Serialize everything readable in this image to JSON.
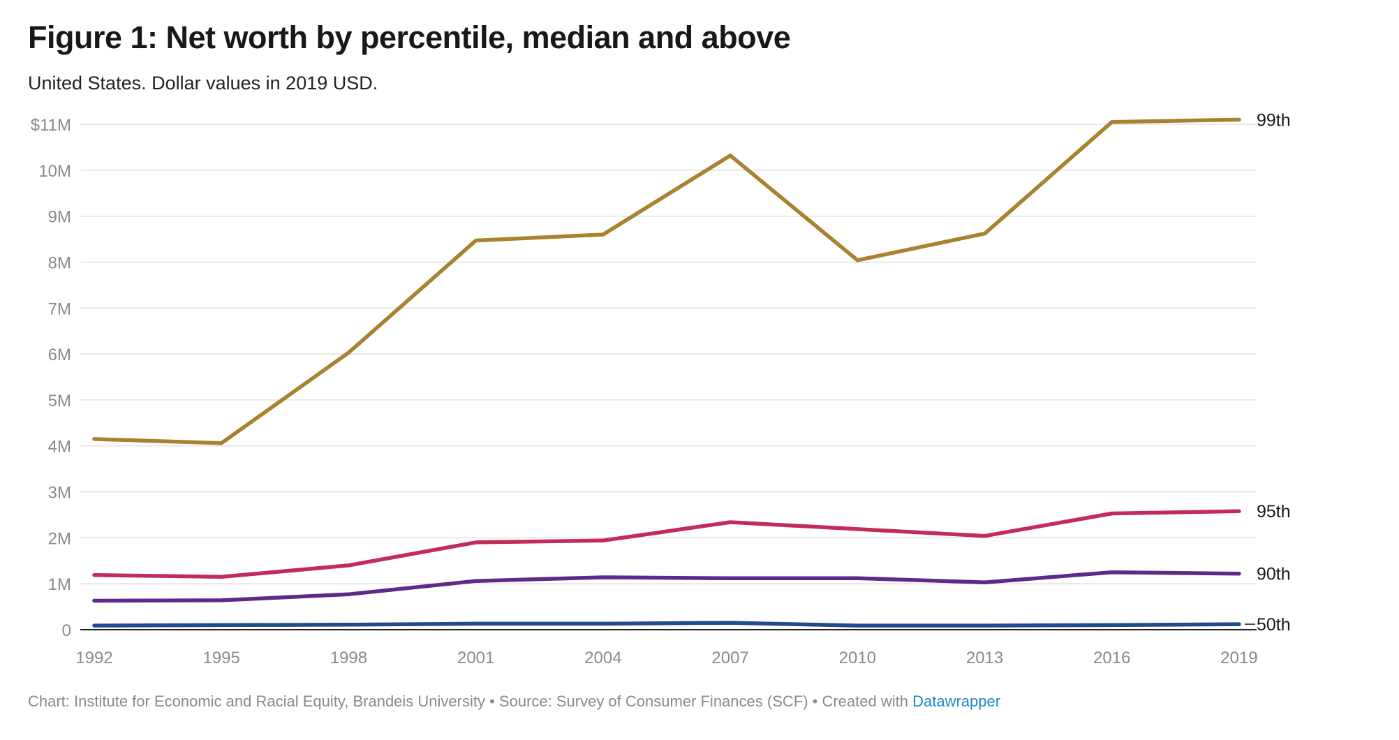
{
  "title": "Figure 1: Net worth by percentile, median and above",
  "subtitle": "United States. Dollar values in 2019 USD.",
  "footer": {
    "chart_credit": "Chart: Institute for Economic and Racial Equity, Brandeis University",
    "separator": " • ",
    "source": "Source: Survey of Consumer Finances (SCF)",
    "created_with": "Created with ",
    "tool": "Datawrapper"
  },
  "chart_data": {
    "type": "line",
    "title": "Figure 1: Net worth by percentile, median and above",
    "subtitle": "United States. Dollar values in 2019 USD.",
    "x": [
      1992,
      1995,
      1998,
      2001,
      2004,
      2007,
      2010,
      2013,
      2016,
      2019
    ],
    "ylim": [
      0,
      11000000
    ],
    "y_ticks": [
      {
        "value": 0,
        "label": "0"
      },
      {
        "value": 1000000,
        "label": "1M"
      },
      {
        "value": 2000000,
        "label": "2M"
      },
      {
        "value": 3000000,
        "label": "3M"
      },
      {
        "value": 4000000,
        "label": "4M"
      },
      {
        "value": 5000000,
        "label": "5M"
      },
      {
        "value": 6000000,
        "label": "6M"
      },
      {
        "value": 7000000,
        "label": "7M"
      },
      {
        "value": 8000000,
        "label": "8M"
      },
      {
        "value": 9000000,
        "label": "9M"
      },
      {
        "value": 10000000,
        "label": "10M"
      },
      {
        "value": 11000000,
        "label": "$11M"
      }
    ],
    "grid": "horizontal",
    "legend": "end-of-line labels",
    "series": [
      {
        "name": "99th",
        "color": "#a8822f",
        "values": [
          4150000,
          4060000,
          6030000,
          8470000,
          8600000,
          10320000,
          8040000,
          8620000,
          11050000,
          11100000
        ]
      },
      {
        "name": "95th",
        "color": "#c22c56",
        "values": [
          1190000,
          1150000,
          1400000,
          1900000,
          1940000,
          2340000,
          2190000,
          2040000,
          2530000,
          2580000
        ]
      },
      {
        "name": "90th",
        "color": "#5d2a8a",
        "values": [
          630000,
          640000,
          770000,
          1060000,
          1140000,
          1120000,
          1120000,
          1030000,
          1250000,
          1220000
        ]
      },
      {
        "name": "50th",
        "color": "#234a8c",
        "values": [
          90000,
          100000,
          110000,
          130000,
          130000,
          150000,
          90000,
          90000,
          100000,
          120000
        ]
      }
    ]
  }
}
